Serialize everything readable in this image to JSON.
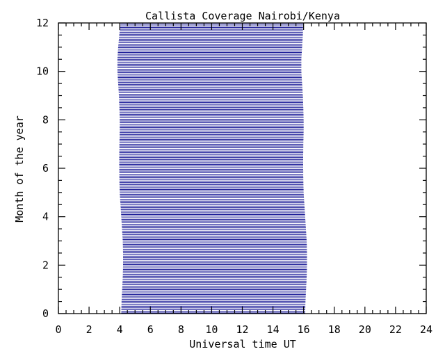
{
  "chart_data": {
    "type": "area",
    "title": "Callista Coverage Nairobi/Kenya",
    "xlabel": "Universal time UT",
    "ylabel": "Month of the year",
    "xlim": [
      0,
      24
    ],
    "ylim": [
      0,
      12
    ],
    "x_ticks": [
      "0",
      "2",
      "4",
      "6",
      "8",
      "10",
      "12",
      "14",
      "16",
      "18",
      "20",
      "22",
      "24"
    ],
    "y_ticks": [
      "0",
      "2",
      "4",
      "6",
      "8",
      "10",
      "12"
    ],
    "grid": false,
    "legend": "none",
    "line_color": "#00008b",
    "months": [
      0.0,
      0.5,
      1,
      1.5,
      2,
      2.5,
      3,
      3.5,
      4,
      4.5,
      5,
      5.5,
      6,
      6.5,
      7,
      7.5,
      8,
      8.5,
      9,
      9.5,
      10,
      10.5,
      11,
      11.5,
      12
    ],
    "coverage_start_ut": [
      4.1,
      4.12,
      4.16,
      4.2,
      4.22,
      4.22,
      4.2,
      4.15,
      4.1,
      4.05,
      4.0,
      3.98,
      3.97,
      3.97,
      3.98,
      4.0,
      4.0,
      3.98,
      3.95,
      3.9,
      3.85,
      3.85,
      3.9,
      3.97,
      4.05
    ],
    "coverage_end_ut": [
      16.1,
      16.12,
      16.16,
      16.2,
      16.22,
      16.22,
      16.2,
      16.15,
      16.1,
      16.05,
      16.0,
      15.98,
      15.97,
      15.97,
      15.98,
      16.0,
      16.0,
      15.98,
      15.95,
      15.9,
      15.85,
      15.85,
      15.9,
      15.95,
      15.97
    ]
  }
}
